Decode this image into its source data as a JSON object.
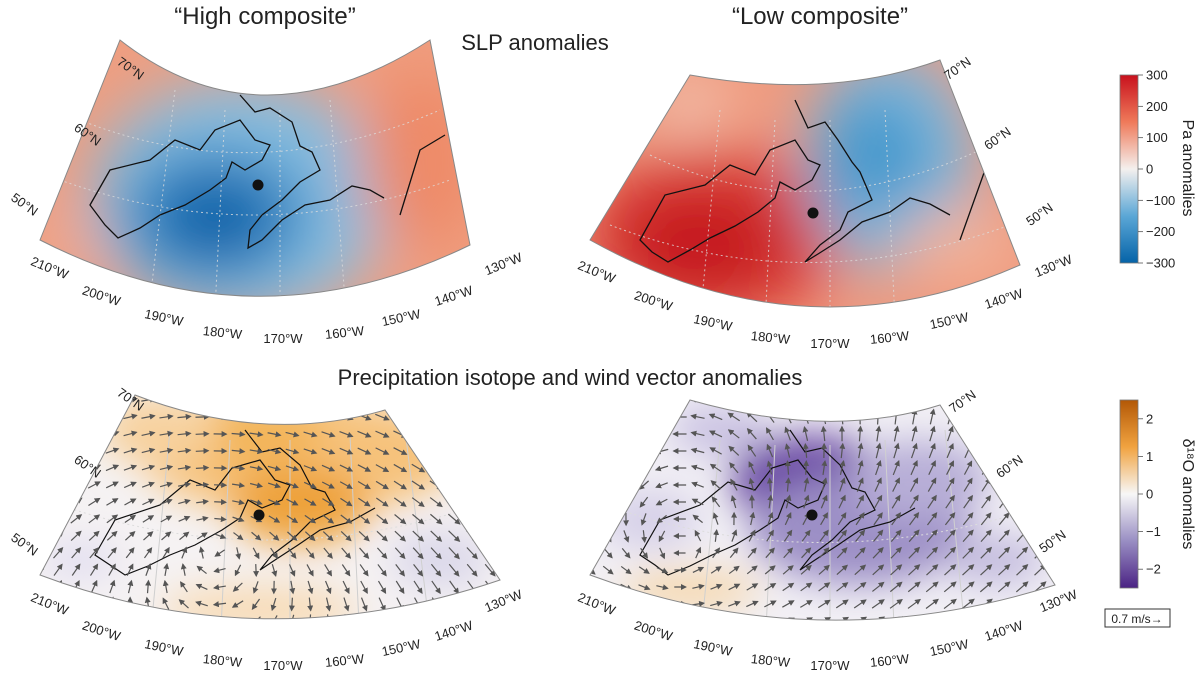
{
  "headers": {
    "high_composite": "“High composite”",
    "low_composite": "“Low composite”",
    "slp_title": "SLP anomalies",
    "isotope_title": "Precipitation isotope and wind vector anomalies"
  },
  "chart_data": [
    {
      "type": "heatmap",
      "panel": "top-left",
      "title": "SLP anomalies",
      "subtitle": "“High composite”",
      "variable": "SLP anomaly (Pa)",
      "lon_ticks": [
        "210°W",
        "200°W",
        "190°W",
        "180°W",
        "170°W",
        "160°W",
        "150°W",
        "140°W",
        "130°W"
      ],
      "lat_ticks": [
        "50°N",
        "60°N",
        "70°N"
      ],
      "anomaly_centers": [
        {
          "sign": "negative",
          "lon_w": 182,
          "lat_n": 52,
          "value": -300
        },
        {
          "sign": "positive",
          "lon_w": 140,
          "lat_n": 58,
          "value": 150
        },
        {
          "sign": "positive",
          "lon_w": 205,
          "lat_n": 47,
          "value": 100
        }
      ],
      "marker": {
        "lon_w": 172,
        "lat_n": 55
      }
    },
    {
      "type": "heatmap",
      "panel": "top-right",
      "title": "SLP anomalies",
      "subtitle": "“Low composite”",
      "variable": "SLP anomaly (Pa)",
      "lon_ticks": [
        "210°W",
        "200°W",
        "190°W",
        "180°W",
        "170°W",
        "160°W",
        "150°W",
        "140°W",
        "130°W"
      ],
      "lat_ticks": [
        "50°N",
        "60°N",
        "70°N"
      ],
      "anomaly_centers": [
        {
          "sign": "positive",
          "lon_w": 195,
          "lat_n": 50,
          "value": 300
        },
        {
          "sign": "negative",
          "lon_w": 155,
          "lat_n": 60,
          "value": -200
        },
        {
          "sign": "positive",
          "lon_w": 140,
          "lat_n": 48,
          "value": 100
        }
      ],
      "marker": {
        "lon_w": 172,
        "lat_n": 55
      }
    },
    {
      "type": "heatmap",
      "panel": "bottom-left",
      "title": "Precipitation isotope and wind vector anomalies",
      "subtitle": "“High composite”",
      "variable": "δ18O anomalies",
      "lon_ticks": [
        "210°W",
        "200°W",
        "190°W",
        "180°W",
        "170°W",
        "160°W",
        "150°W",
        "140°W",
        "130°W"
      ],
      "lat_ticks": [
        "50°N",
        "60°N",
        "70°N"
      ],
      "anomaly_centers": [
        {
          "sign": "positive",
          "lon_w": 172,
          "lat_n": 60,
          "value": 2
        },
        {
          "sign": "positive",
          "lon_w": 190,
          "lat_n": 66,
          "value": 1
        },
        {
          "sign": "negative",
          "lon_w": 135,
          "lat_n": 52,
          "value": -0.5
        }
      ],
      "wind_flow": "cyclonic around 182°W 52°N",
      "marker": {
        "lon_w": 172,
        "lat_n": 55
      }
    },
    {
      "type": "heatmap",
      "panel": "bottom-right",
      "title": "Precipitation isotope and wind vector anomalies",
      "subtitle": "“Low composite”",
      "variable": "δ18O anomalies",
      "lon_ticks": [
        "210°W",
        "200°W",
        "190°W",
        "180°W",
        "170°W",
        "160°W",
        "150°W",
        "140°W",
        "130°W"
      ],
      "lat_ticks": [
        "50°N",
        "60°N",
        "70°N"
      ],
      "anomaly_centers": [
        {
          "sign": "negative",
          "lon_w": 172,
          "lat_n": 62,
          "value": -2.5
        },
        {
          "sign": "negative",
          "lon_w": 165,
          "lat_n": 52,
          "value": -1.5
        },
        {
          "sign": "positive",
          "lon_w": 200,
          "lat_n": 50,
          "value": 0.8
        }
      ],
      "wind_flow": "anticyclonic around 195°W 50°N",
      "marker": {
        "lon_w": 172,
        "lat_n": 55
      }
    }
  ],
  "colorbars": {
    "slp": {
      "label": "Pa anomalies",
      "min": -300,
      "max": 300,
      "ticks": [
        "300",
        "200",
        "100",
        "0",
        "−100",
        "−200",
        "−300"
      ],
      "colors": [
        "#d7191c",
        "#ef8a62",
        "#f7f7f7",
        "#67a9cf",
        "#0570b0"
      ]
    },
    "isotope": {
      "label": "δ¹⁸O anomalies",
      "min": -2.5,
      "max": 2.5,
      "ticks": [
        "2",
        "1",
        "0",
        "−1",
        "−2"
      ],
      "colors": [
        "#b35806",
        "#f1a340",
        "#f7f7f7",
        "#998ec3",
        "#542788"
      ]
    }
  },
  "wind_scale": {
    "label": "0.7 m/s→"
  }
}
